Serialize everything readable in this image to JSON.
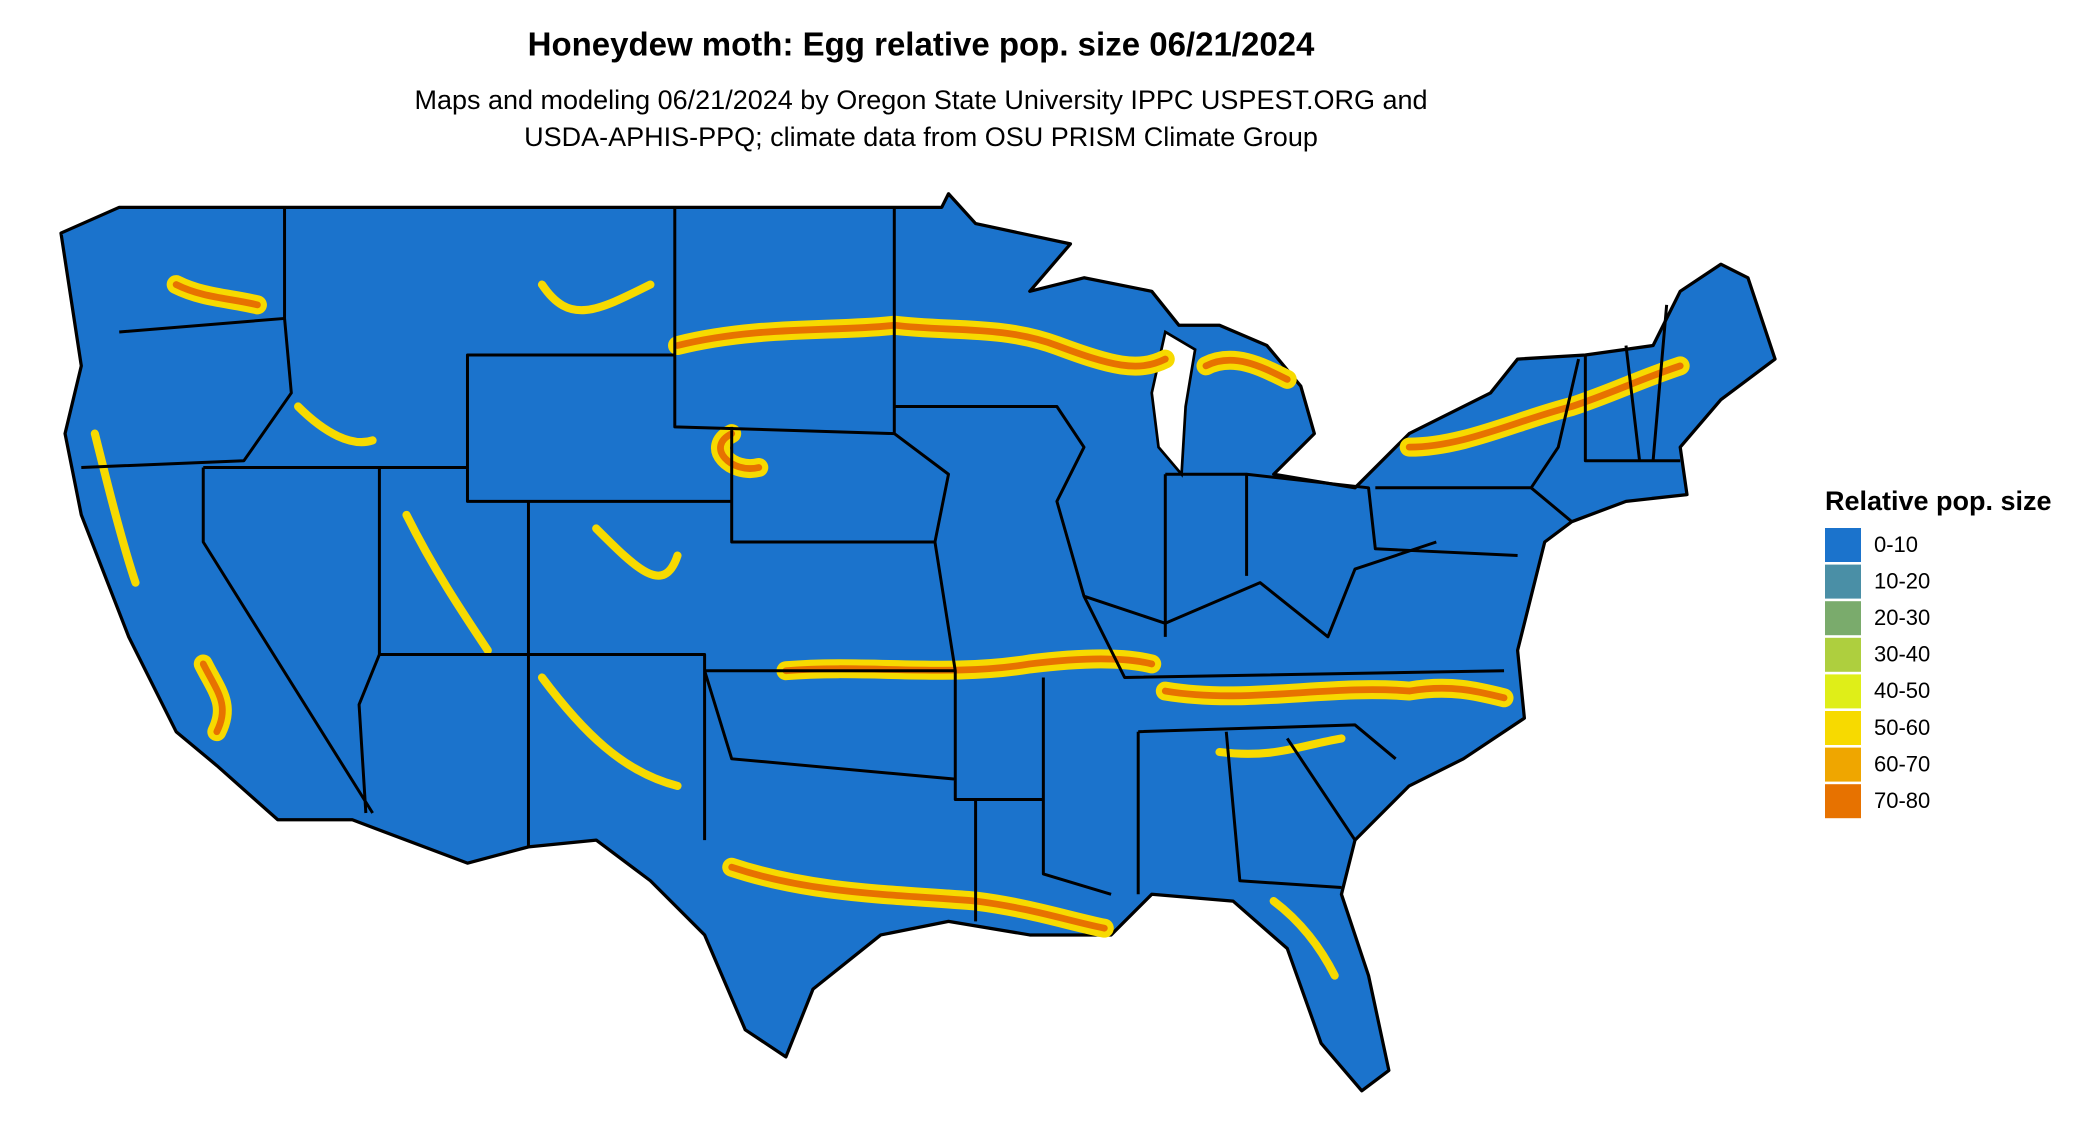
{
  "title": "Honeydew moth: Egg relative pop. size 06/21/2024",
  "subtitle": [
    "Maps and modeling 06/21/2024 by Oregon State University IPPC USPEST.ORG and",
    "USDA-APHIS-PPQ; climate data from OSU PRISM Climate Group"
  ],
  "legend": {
    "title": "Relative pop. size",
    "items": [
      {
        "label": "0-10",
        "color": "#1b73cc"
      },
      {
        "label": "10-20",
        "color": "#4a8fa6"
      },
      {
        "label": "20-30",
        "color": "#7aab6c"
      },
      {
        "label": "30-40",
        "color": "#aecf3e"
      },
      {
        "label": "40-50",
        "color": "#dfee18"
      },
      {
        "label": "50-60",
        "color": "#f7da00"
      },
      {
        "label": "60-70",
        "color": "#efa600"
      },
      {
        "label": "70-80",
        "color": "#e77200"
      }
    ]
  }
}
